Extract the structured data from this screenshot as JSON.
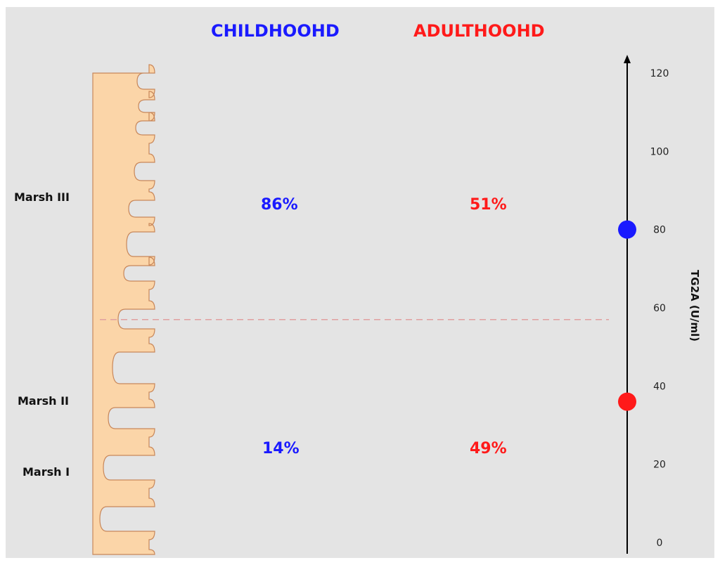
{
  "headers": {
    "childhood": {
      "label": "CHILDHOOHD",
      "color": "#1a1aff"
    },
    "adulthood": {
      "label": "ADULTHOOHD",
      "color": "#ff1a1a"
    }
  },
  "percentages": {
    "childhood_upper": "86%",
    "adulthood_upper": "51%",
    "childhood_lower": "14%",
    "adulthood_lower": "49%"
  },
  "marsh_labels": {
    "iii": "Marsh III",
    "ii": "Marsh II",
    "i": "Marsh I"
  },
  "axis": {
    "title": "TG2A (U/ml)",
    "ticks": [
      0,
      20,
      40,
      60,
      80,
      100,
      120
    ],
    "range": [
      0,
      120
    ],
    "threshold": 57
  },
  "markers": [
    {
      "group": "childhood",
      "value": 80,
      "color": "#1a1aff"
    },
    {
      "group": "adulthood",
      "value": 36,
      "color": "#ff1a1a"
    }
  ],
  "tissue_color": "#fbd5a8",
  "tissue_stroke": "#c8875a"
}
